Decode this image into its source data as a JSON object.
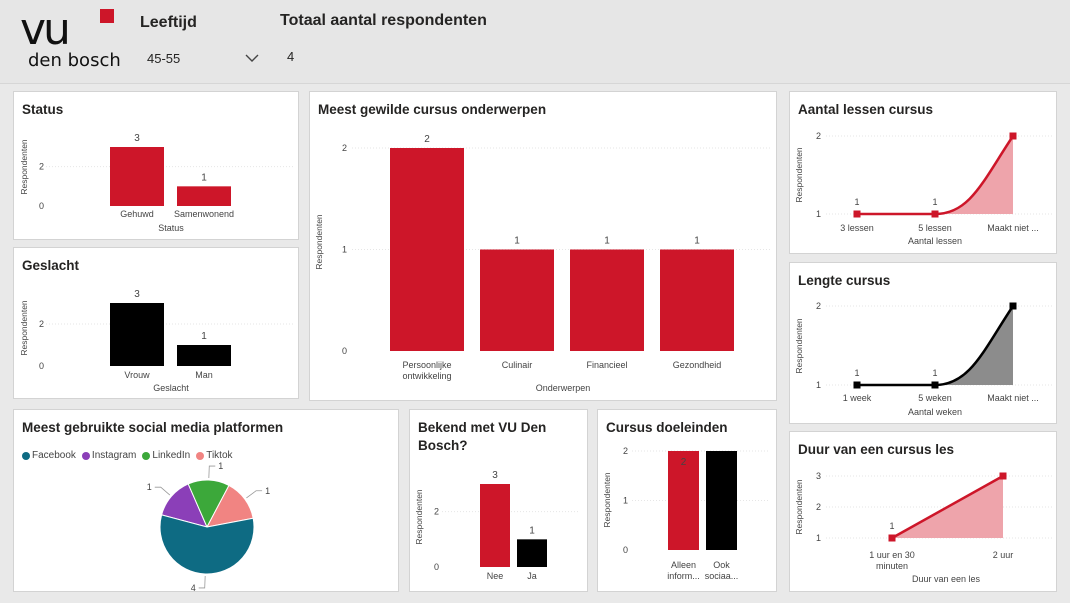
{
  "header": {
    "logo_main": "vu",
    "logo_sub": "den bosch",
    "filter_label": "Leeftijd",
    "filter_value": "45-55",
    "total_label": "Totaal aantal respondenten",
    "total_value": "4"
  },
  "colors": {
    "red": "#cd1629",
    "black": "#000000",
    "pink": "#eea4ab",
    "gray": "#8c8c8c"
  },
  "chart_data": [
    {
      "id": "status",
      "type": "bar",
      "title": "Status",
      "xlabel": "Status",
      "ylabel": "Respondenten",
      "categories": [
        "Gehuwd",
        "Samenwonend"
      ],
      "values": [
        3,
        1
      ],
      "ylim": [
        0,
        3
      ],
      "yticks": [
        0,
        2
      ]
    },
    {
      "id": "geslacht",
      "type": "bar",
      "title": "Geslacht",
      "xlabel": "Geslacht",
      "ylabel": "Respondenten",
      "categories": [
        "Vrouw",
        "Man"
      ],
      "values": [
        3,
        1
      ],
      "ylim": [
        0,
        3
      ],
      "yticks": [
        0,
        2
      ]
    },
    {
      "id": "onderwerpen",
      "type": "bar",
      "title": "Meest gewilde cursus onderwerpen",
      "xlabel": "Onderwerpen",
      "ylabel": "Respondenten",
      "categories": [
        "Persoonlijke ontwikkeling",
        "Culinair",
        "Financieel",
        "Gezondheid"
      ],
      "values": [
        2,
        1,
        1,
        1
      ],
      "ylim": [
        0,
        2
      ],
      "yticks": [
        0,
        1,
        2
      ]
    },
    {
      "id": "lessen",
      "type": "area",
      "title": "Aantal lessen cursus",
      "xlabel": "Aantal lessen",
      "ylabel": "Respondenten",
      "categories": [
        "3 lessen",
        "5 lessen",
        "Maakt niet ..."
      ],
      "values": [
        1,
        1,
        2
      ],
      "ylim": [
        1,
        2
      ],
      "yticks": [
        1,
        2
      ]
    },
    {
      "id": "lengte",
      "type": "area",
      "title": "Lengte cursus",
      "xlabel": "Aantal weken",
      "ylabel": "Respondenten",
      "categories": [
        "1 week",
        "5 weken",
        "Maakt niet ..."
      ],
      "values": [
        1,
        1,
        2
      ],
      "ylim": [
        1,
        2
      ],
      "yticks": [
        1,
        2
      ]
    },
    {
      "id": "duur",
      "type": "area",
      "title": "Duur van een cursus les",
      "xlabel": "Duur van een les",
      "ylabel": "Respondenten",
      "categories": [
        "1 uur en 30 minuten",
        "2 uur"
      ],
      "values": [
        1,
        3
      ],
      "ylim": [
        1,
        3
      ],
      "yticks": [
        1,
        2,
        3
      ]
    },
    {
      "id": "social",
      "type": "pie",
      "title": "Meest gebruikte social media platformen",
      "categories": [
        "Facebook",
        "Instagram",
        "LinkedIn",
        "Tiktok"
      ],
      "values": [
        4,
        1,
        1,
        1
      ],
      "colors": [
        "#0e6b83",
        "#8b3fb8",
        "#3ca83a",
        "#f18482"
      ]
    },
    {
      "id": "bekend",
      "type": "bar",
      "title": "Bekend met VU Den Bosch?",
      "ylabel": "Respondenten",
      "categories": [
        "Nee",
        "Ja"
      ],
      "values": [
        3,
        1
      ],
      "ylim": [
        0,
        3
      ],
      "yticks": [
        0,
        2
      ]
    },
    {
      "id": "doeleinden",
      "type": "bar",
      "title": "Cursus doeleinden",
      "ylabel": "Respondenten",
      "categories": [
        "Alleen inform...",
        "Ook sociaa..."
      ],
      "values": [
        2,
        2
      ],
      "ylim": [
        0,
        2
      ],
      "yticks": [
        0,
        1,
        2
      ]
    }
  ]
}
